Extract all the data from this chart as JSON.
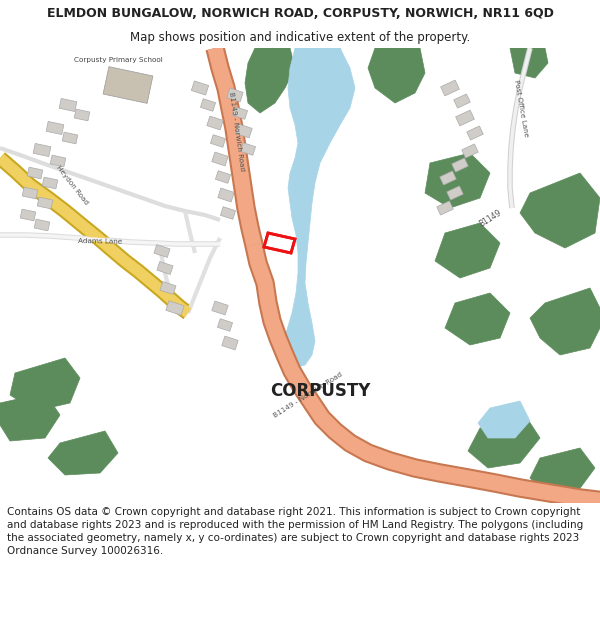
{
  "title": "ELMDON BUNGALOW, NORWICH ROAD, CORPUSTY, NORWICH, NR11 6QD",
  "subtitle": "Map shows position and indicative extent of the property.",
  "footer": "Contains OS data © Crown copyright and database right 2021. This information is subject to Crown copyright and database rights 2023 and is reproduced with the permission of HM Land Registry. The polygons (including the associated geometry, namely x, y co-ordinates) are subject to Crown copyright and database rights 2023 Ordnance Survey 100026316.",
  "title_fontsize": 9,
  "subtitle_fontsize": 8.5,
  "footer_fontsize": 7.5,
  "bg_color": "#ffffff",
  "map_bg": "#f8f8f8",
  "road_salmon": "#f2a884",
  "road_yellow": "#f0d060",
  "road_white": "#ffffff",
  "green": "#5c8c5c",
  "water": "#a8d4e8",
  "building": "#d0ccc8",
  "building_school": "#c8c0b0",
  "text_dark": "#222222",
  "text_mid": "#444444",
  "red": "#ee1111"
}
